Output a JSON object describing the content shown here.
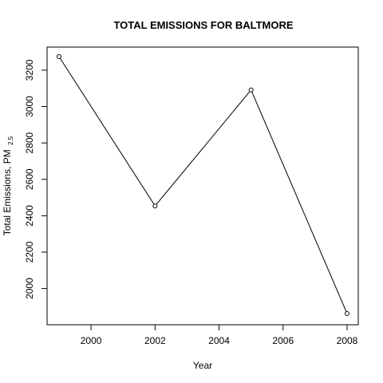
{
  "chart_data": {
    "type": "line",
    "title": "TOTAL EMISSIONS FOR  BALTMORE",
    "xlabel": "Year",
    "ylabel": "Total Emissions, PM",
    "ylabel_subscript": "2.5",
    "x": [
      1999,
      2002,
      2005,
      2008
    ],
    "series": [
      {
        "values": [
          3274.18,
          2453.92,
          3091.35,
          1862.28
        ]
      }
    ],
    "xlim": [
      1999,
      2008
    ],
    "ylim": [
      1862.28,
      3274.18
    ],
    "xticks": [
      2000,
      2002,
      2004,
      2006,
      2008
    ],
    "yticks": [
      2000,
      2200,
      2400,
      2600,
      2800,
      3000,
      3200
    ],
    "grid": false,
    "marker": "open-circle",
    "line_color": "#000000"
  }
}
